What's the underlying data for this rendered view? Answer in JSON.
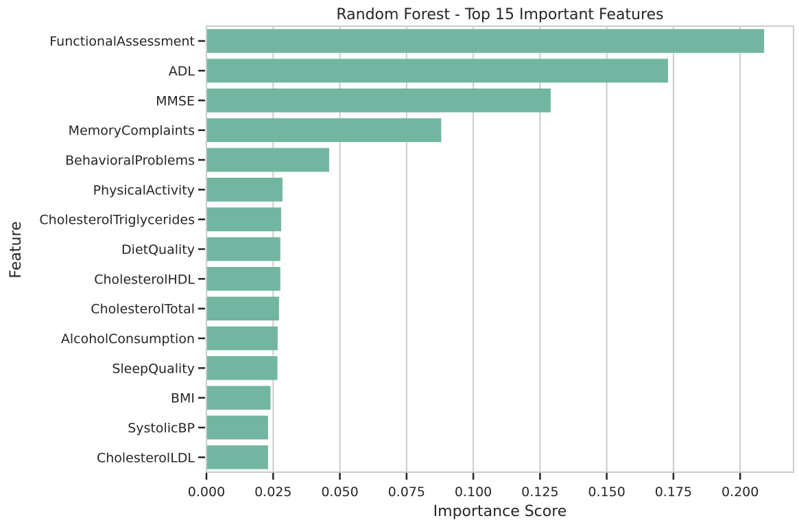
{
  "chart_data": {
    "type": "bar",
    "orientation": "horizontal",
    "title": "Random Forest - Top 15 Important Features",
    "xlabel": "Importance Score",
    "ylabel": "Feature",
    "xlim": [
      0,
      0.22
    ],
    "xticks": [
      0.0,
      0.025,
      0.05,
      0.075,
      0.1,
      0.125,
      0.15,
      0.175,
      0.2
    ],
    "xtick_labels": [
      "0.000",
      "0.025",
      "0.050",
      "0.075",
      "0.100",
      "0.125",
      "0.150",
      "0.175",
      "0.200"
    ],
    "grid": "vertical",
    "bar_color": "#72b6a1",
    "categories": [
      "FunctionalAssessment",
      "ADL",
      "MMSE",
      "MemoryComplaints",
      "BehavioralProblems",
      "PhysicalActivity",
      "CholesterolTriglycerides",
      "DietQuality",
      "CholesterolHDL",
      "CholesterolTotal",
      "AlcoholConsumption",
      "SleepQuality",
      "BMI",
      "SystolicBP",
      "CholesterolLDL"
    ],
    "values": [
      0.209,
      0.173,
      0.129,
      0.088,
      0.046,
      0.0285,
      0.028,
      0.0277,
      0.0277,
      0.0272,
      0.0267,
      0.0266,
      0.024,
      0.0231,
      0.0231
    ]
  }
}
